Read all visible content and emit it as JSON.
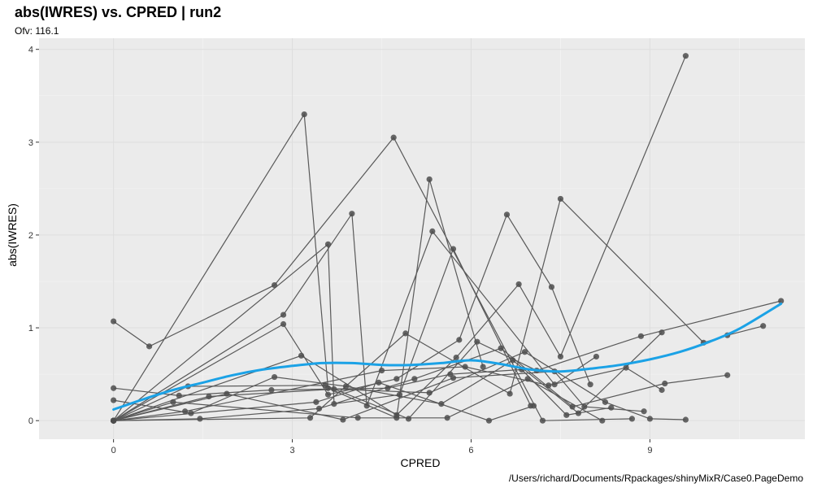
{
  "chart_data": {
    "type": "line",
    "title": "abs(IWRES) vs. CPRED | run2",
    "subtitle": "Ofv: 116.1",
    "xlabel": "CPRED",
    "ylabel": "abs(IWRES)",
    "caption": "/Users/richard/Documents/Rpackages/shinyMixR/Case0.PageDemo",
    "xlim": [
      -1.25,
      11.6
    ],
    "ylim": [
      -0.2,
      4.12
    ],
    "xticks": [
      0,
      3,
      6,
      9
    ],
    "yticks": [
      0,
      1,
      2,
      3,
      4
    ],
    "grid": true,
    "panel_color": "#EBEBEB",
    "point_color": "#4D4D4D",
    "line_color": "#595959",
    "smooth_color": "#1BA2E6",
    "series": [
      {
        "x": [
          0,
          0.6,
          2.7,
          4.7,
          7.2,
          8.7
        ],
        "y": [
          1.07,
          0.8,
          1.46,
          3.05,
          0.0,
          0.02
        ]
      },
      {
        "x": [
          0,
          3.2,
          3.6,
          4.75,
          5.3,
          6.2
        ],
        "y": [
          0.0,
          3.3,
          0.35,
          0.03,
          2.6,
          0.58
        ]
      },
      {
        "x": [
          0,
          3.6,
          3.7,
          4.8,
          5.7,
          7.0
        ],
        "y": [
          0.0,
          1.9,
          0.18,
          0.28,
          1.85,
          0.16
        ]
      },
      {
        "x": [
          0,
          2.85,
          4.0,
          4.25,
          5.35,
          7.4,
          8.1
        ],
        "y": [
          0.0,
          1.14,
          2.23,
          0.16,
          2.04,
          0.39,
          0.69
        ]
      },
      {
        "x": [
          0,
          2.85,
          3.6,
          4.75,
          5.8,
          6.6,
          7.35,
          8.0
        ],
        "y": [
          0.0,
          1.04,
          0.28,
          0.45,
          0.87,
          2.22,
          1.44,
          0.39
        ]
      },
      {
        "x": [
          0,
          3.15,
          4.75,
          5.75,
          6.8,
          7.5,
          9.6
        ],
        "y": [
          0.0,
          0.7,
          0.06,
          0.68,
          1.47,
          0.69,
          3.93
        ]
      },
      {
        "x": [
          0,
          3.3,
          4.9,
          6.65,
          7.5,
          9.9,
          10.3,
          10.9
        ],
        "y": [
          0.0,
          0.03,
          0.94,
          0.29,
          2.39,
          0.84,
          0.92,
          1.02
        ]
      },
      {
        "x": [
          0,
          1.25,
          3.55,
          4.95,
          6.1,
          7.1,
          8.85,
          11.2
        ],
        "y": [
          0.0,
          0.37,
          0.38,
          0.02,
          0.85,
          0.54,
          0.91,
          1.29
        ]
      },
      {
        "x": [
          0,
          1.1,
          2.65,
          4.6,
          5.65,
          6.85,
          7.6,
          8.35
        ],
        "y": [
          0.35,
          0.27,
          0.33,
          0.35,
          0.5,
          0.55,
          0.06,
          0.14
        ]
      },
      {
        "x": [
          0,
          1.3,
          2.7,
          3.9,
          5.5,
          6.7,
          7.8,
          9.2
        ],
        "y": [
          0.22,
          0.08,
          0.47,
          0.37,
          0.18,
          0.65,
          0.08,
          0.95
        ]
      },
      {
        "x": [
          0,
          1.45,
          3.45,
          5.05,
          6.5,
          7.7,
          9.25,
          10.3
        ],
        "y": [
          0.0,
          0.02,
          0.13,
          0.45,
          0.78,
          0.15,
          0.4,
          0.49
        ]
      },
      {
        "x": [
          0,
          1.6,
          3.7,
          5.3,
          6.9,
          8.25,
          9.0,
          9.6
        ],
        "y": [
          0.0,
          0.26,
          0.34,
          0.3,
          0.74,
          0.2,
          0.02,
          0.01
        ]
      },
      {
        "x": [
          0,
          1.2,
          4.5,
          5.9,
          7.3,
          8.6,
          9.2
        ],
        "y": [
          0.0,
          0.1,
          0.54,
          0.58,
          0.38,
          0.57,
          0.33
        ]
      },
      {
        "x": [
          0,
          1.9,
          3.85,
          5.7,
          7.4,
          7.9,
          8.9
        ],
        "y": [
          0.0,
          0.29,
          0.01,
          0.46,
          0.53,
          0.15,
          0.1
        ]
      },
      {
        "x": [
          0,
          1.0,
          4.1,
          5.6,
          6.95,
          8.2
        ],
        "y": [
          0.0,
          0.2,
          0.03,
          0.03,
          0.45,
          0.0
        ]
      },
      {
        "x": [
          0,
          3.4,
          4.45,
          6.3,
          7.05
        ],
        "y": [
          0.0,
          0.2,
          0.41,
          0.0,
          0.16
        ]
      }
    ],
    "smooth": {
      "x": [
        0,
        0.5,
        1,
        1.5,
        2,
        2.5,
        3,
        3.5,
        4,
        4.5,
        5,
        5.5,
        6,
        6.5,
        7,
        7.5,
        8,
        8.5,
        9,
        9.5,
        10,
        10.5,
        11.2
      ],
      "y": [
        0.12,
        0.23,
        0.33,
        0.41,
        0.49,
        0.55,
        0.59,
        0.62,
        0.62,
        0.6,
        0.6,
        0.62,
        0.65,
        0.61,
        0.55,
        0.53,
        0.56,
        0.6,
        0.66,
        0.74,
        0.85,
        0.99,
        1.26
      ]
    }
  }
}
